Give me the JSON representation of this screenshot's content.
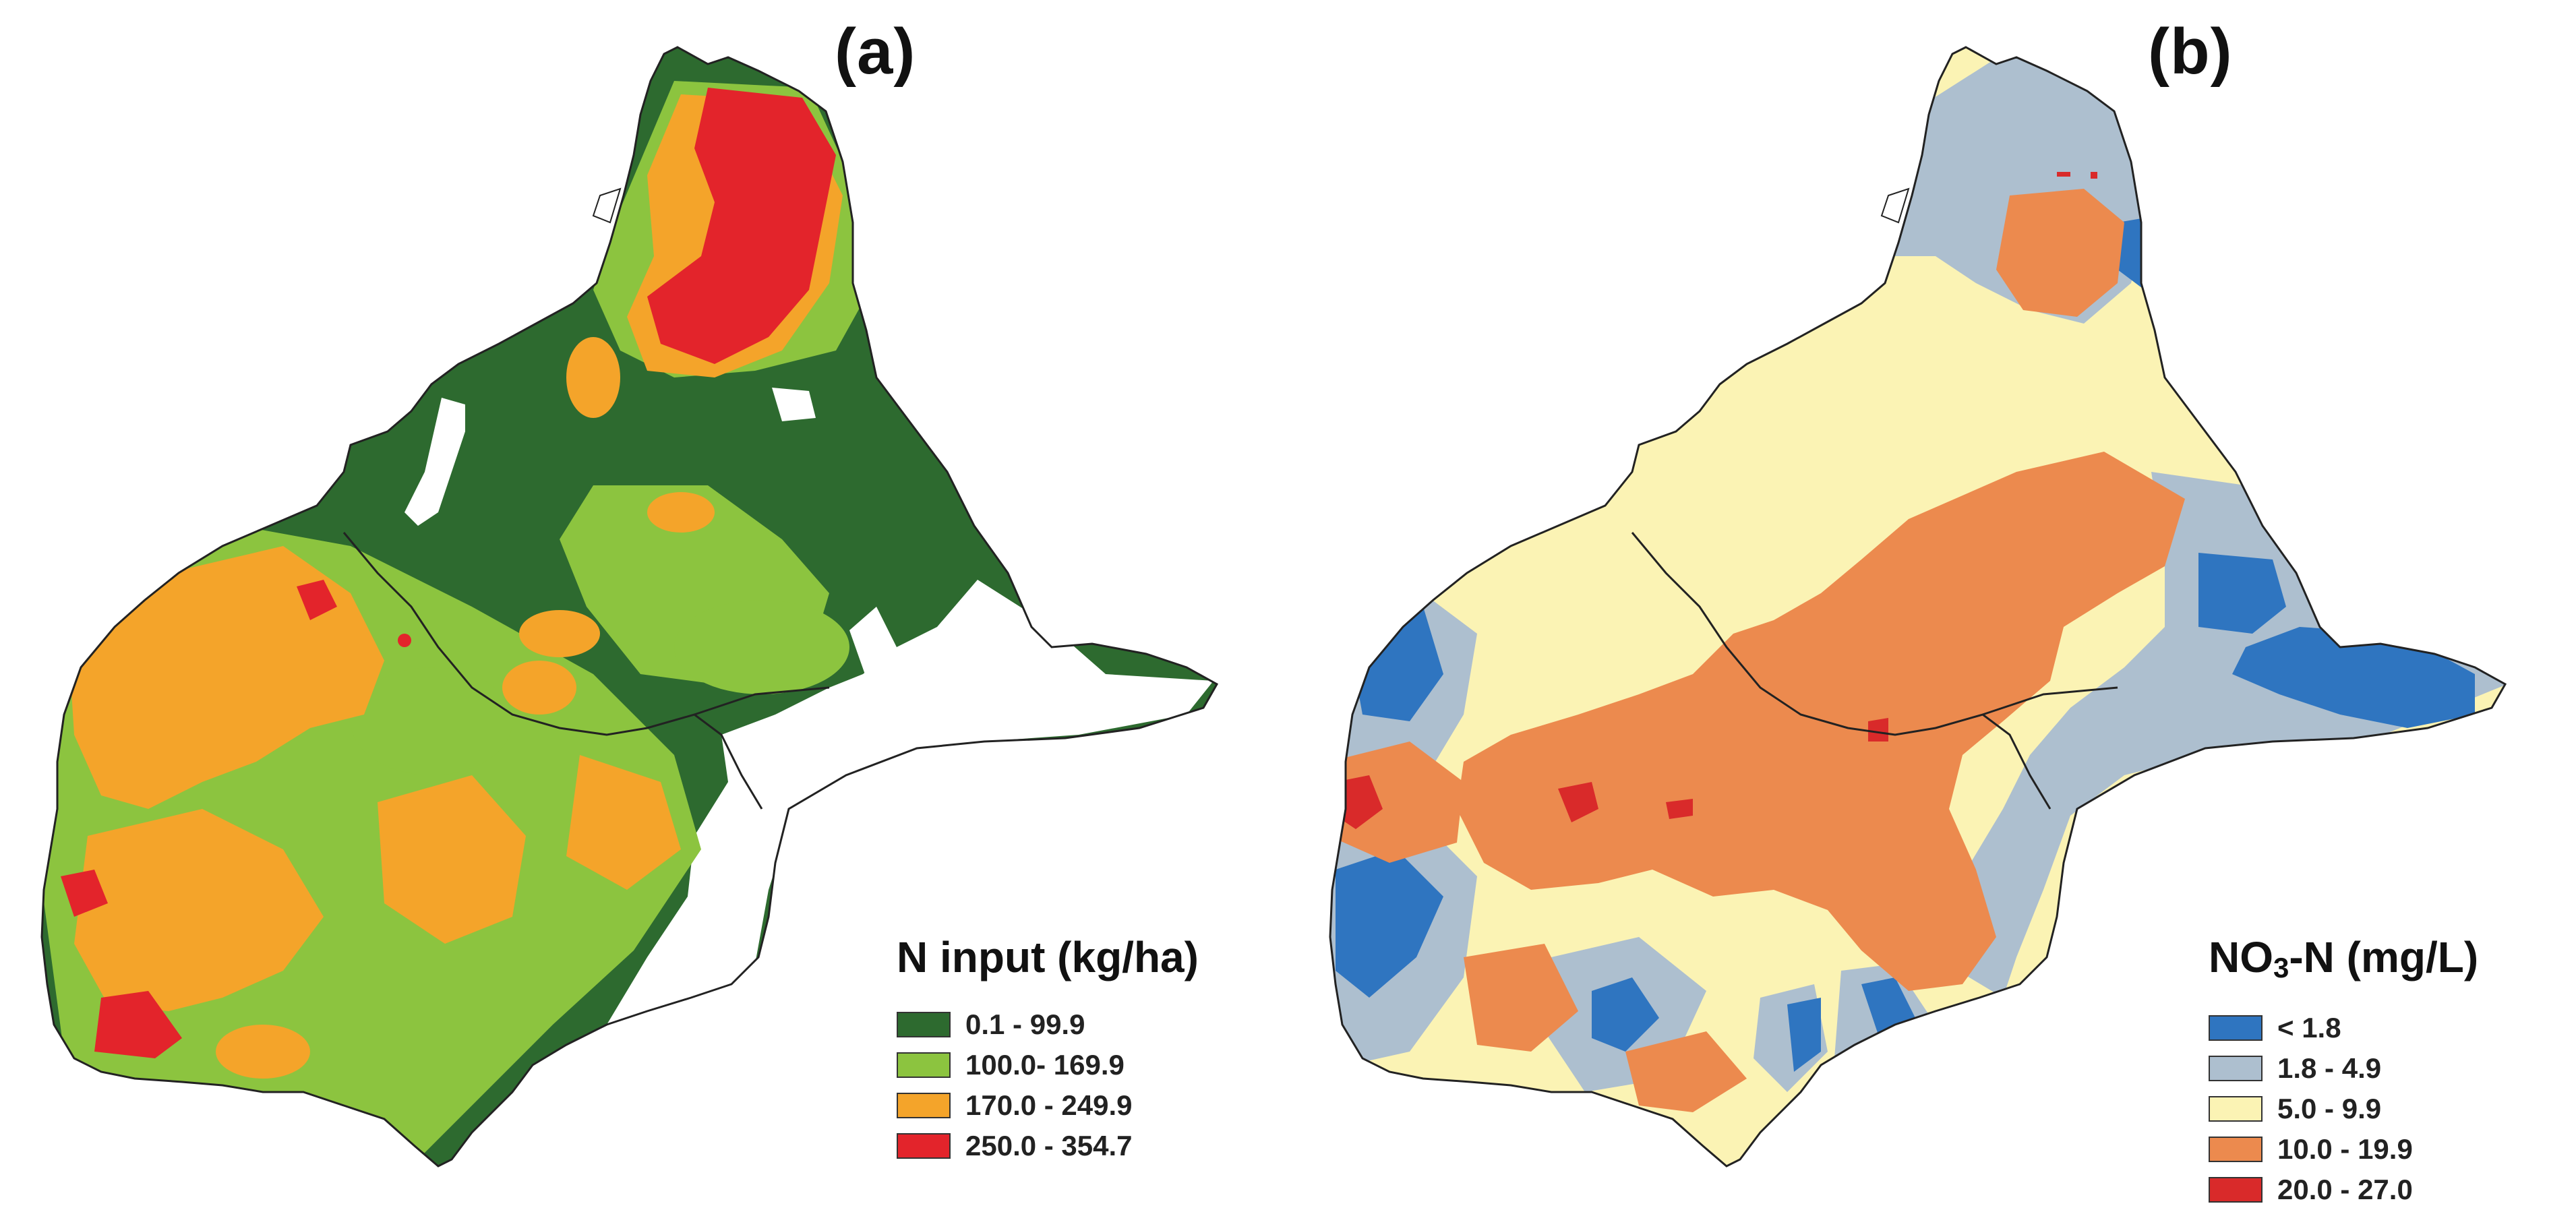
{
  "panels": [
    {
      "label": "(a)",
      "legend": {
        "title": "N input (kg/ha)",
        "items": [
          {
            "label": "0.1 - 99.9",
            "color": "#2d6a2f"
          },
          {
            "label": "100.0- 169.9",
            "color": "#8cc43f"
          },
          {
            "label": "170.0 - 249.9",
            "color": "#f4a42a"
          },
          {
            "label": "250.0 - 354.7",
            "color": "#e3242b"
          }
        ]
      }
    },
    {
      "label": "(b)",
      "legend": {
        "title_main": "NO",
        "title_sub": "3",
        "title_rest": "-N (mg/L)",
        "items": [
          {
            "label": "< 1.8",
            "color": "#2f75c0"
          },
          {
            "label": "1.8 - 4.9",
            "color": "#adbfcf"
          },
          {
            "label": "5.0 - 9.9",
            "color": "#fbf3b4"
          },
          {
            "label": "10.0 - 19.9",
            "color": "#ec8a4e"
          },
          {
            "label": "20.0 - 27.0",
            "color": "#d92a2a"
          }
        ]
      }
    }
  ]
}
